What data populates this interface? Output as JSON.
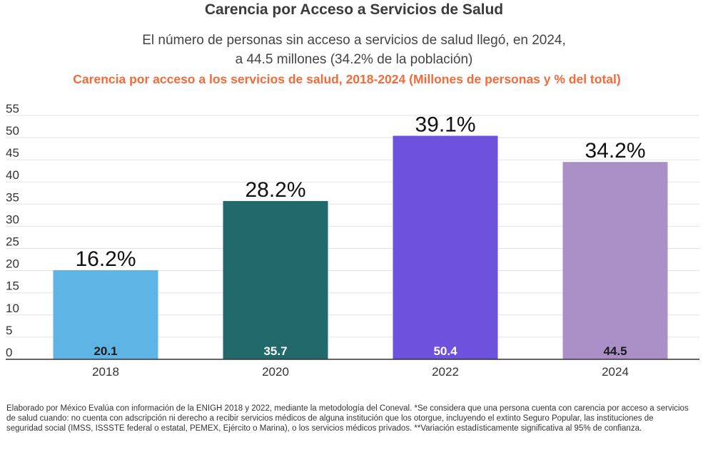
{
  "title": "Carencia por Acceso a Servicios de Salud",
  "subtitle_lines": [
    "El número de personas sin acceso a servicios de salud llegó, en 2024,",
    "a 44.5 millones (34.2% de la población)"
  ],
  "chart_heading": "Carencia por acceso a los servicios de salud, 2018-2024 (Millones de personas y % del total)",
  "chart_data": {
    "type": "bar",
    "categories": [
      "2018",
      "2020",
      "2022",
      "2024"
    ],
    "values": [
      20.1,
      35.7,
      50.4,
      44.5
    ],
    "value_labels": [
      "20.1",
      "35.7",
      "50.4",
      "44.5"
    ],
    "percent_labels": [
      "16.2%",
      "28.2%",
      "39.1%",
      "34.2%"
    ],
    "colors": [
      "#5eb4e4",
      "#22696b",
      "#6c52dc",
      "#aa90c7"
    ],
    "value_label_colors": [
      "#1a1a1a",
      "#ffffff",
      "#ffffff",
      "#1a1a1a"
    ],
    "yticks": [
      "0",
      "5",
      "10",
      "15",
      "20",
      "25",
      "30",
      "35",
      "40",
      "45",
      "50",
      "55"
    ],
    "ylim": [
      0,
      55
    ],
    "grid": true,
    "xlabel": "",
    "ylabel": ""
  },
  "footnote": "Elaborado por México Evalúa con información de la ENIGH 2018 y 2022, mediante la metodología del Coneval. *Se considera  que una persona cuenta con carencia por acceso a servicios de salud cuando: no cuenta con adscripción ni derecho a recibir servicios médicos de alguna institución que los otorgue, incluyendo el extinto Seguro Popular, las instituciones de seguridad social (IMSS, ISSSTE federal o estatal, PEMEX, Ejército o Marina), o los servicios médicos privados. **Variación estadísticamente significativa al 95% de confianza."
}
